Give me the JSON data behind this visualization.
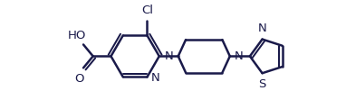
{
  "bg_color": "#ffffff",
  "line_color": "#1a1a4a",
  "line_width": 1.8,
  "font_size_label": 9.5,
  "figsize": [
    3.82,
    1.21
  ],
  "dpi": 100,
  "xlim": [
    -0.5,
    9.5
  ],
  "ylim": [
    0.0,
    2.8
  ]
}
